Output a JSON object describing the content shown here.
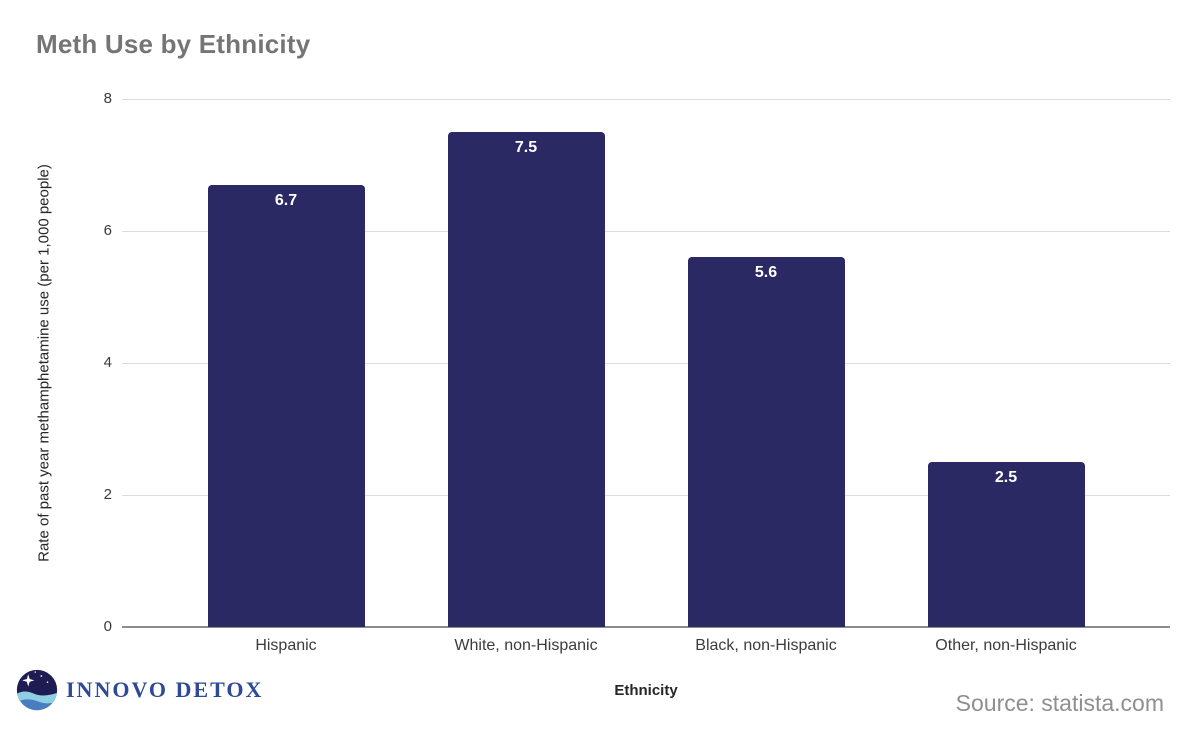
{
  "title": "Meth Use by Ethnicity",
  "source_note": "Source: statista.com",
  "logo": {
    "name": "INNOVO DETOX",
    "icon": "innovo-detox-globe-wave-icon",
    "text_color": "#2e4a96",
    "icon_navy": "#1e1c52",
    "icon_light_wave": "#8ecfe4",
    "icon_dark_wave": "#4a7dbf"
  },
  "chart_data": {
    "type": "bar",
    "title": "Meth Use by Ethnicity",
    "categories": [
      "Hispanic",
      "White, non-Hispanic",
      "Black, non-Hispanic",
      "Other, non-Hispanic"
    ],
    "values": [
      6.7,
      7.5,
      5.6,
      2.5
    ],
    "value_labels": [
      "6.7",
      "7.5",
      "5.6",
      "2.5"
    ],
    "xlabel": "Ethnicity",
    "ylabel": "Rate of past year methamphetamine use (per 1,000 people)",
    "ylim": [
      0,
      8
    ],
    "yticks": [
      0,
      2,
      4,
      6,
      8
    ],
    "grid": true,
    "legend": "none",
    "bar_color": "#2b2964",
    "value_label_color": "#ffffff",
    "gridline_color": "#dcdcdc",
    "axis_line_color": "#8c8c8c"
  }
}
